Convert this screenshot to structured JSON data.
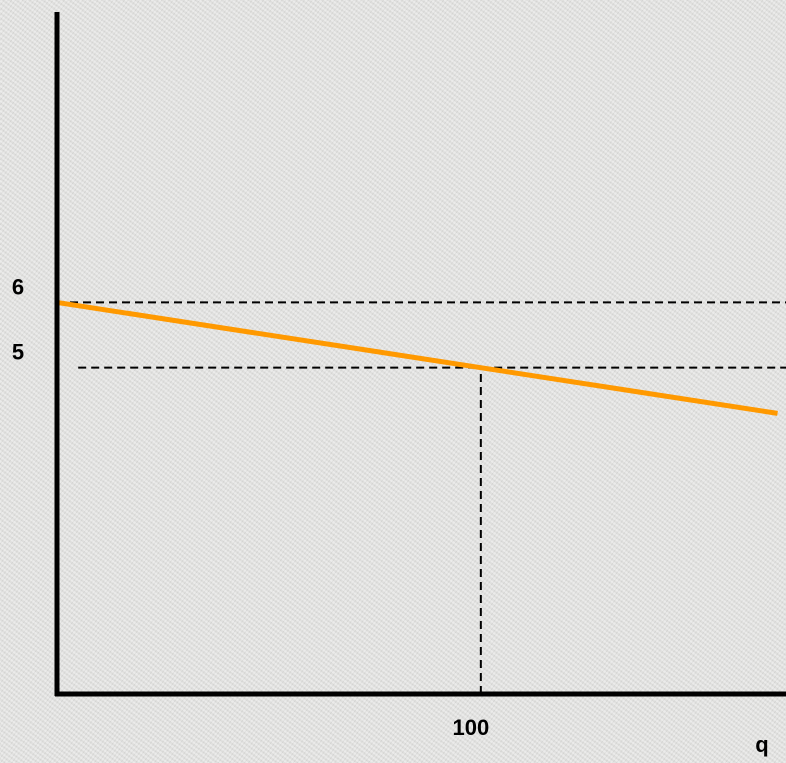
{
  "chart_data": {
    "type": "line",
    "title": "",
    "xlabel": "q",
    "ylabel": "",
    "xlim": [
      0,
      172
    ],
    "ylim": [
      0,
      10.45
    ],
    "x_ticks": [
      {
        "value": 100,
        "label": "100"
      }
    ],
    "y_ticks": [
      {
        "value": 6,
        "label": "6"
      },
      {
        "value": 5,
        "label": "5"
      }
    ],
    "grid": false,
    "series": [
      {
        "color": "#ff9900",
        "x": [
          0,
          100,
          170
        ],
        "y": [
          6,
          5,
          4.3
        ]
      }
    ],
    "reference_lines": [
      {
        "orientation": "horizontal",
        "value": 6,
        "from_x": 0,
        "to_x": 172
      },
      {
        "orientation": "horizontal",
        "value": 5,
        "from_x": 5,
        "to_x": 172
      },
      {
        "orientation": "vertical",
        "value": 100,
        "from_y": 0,
        "to_y": 5
      }
    ]
  }
}
